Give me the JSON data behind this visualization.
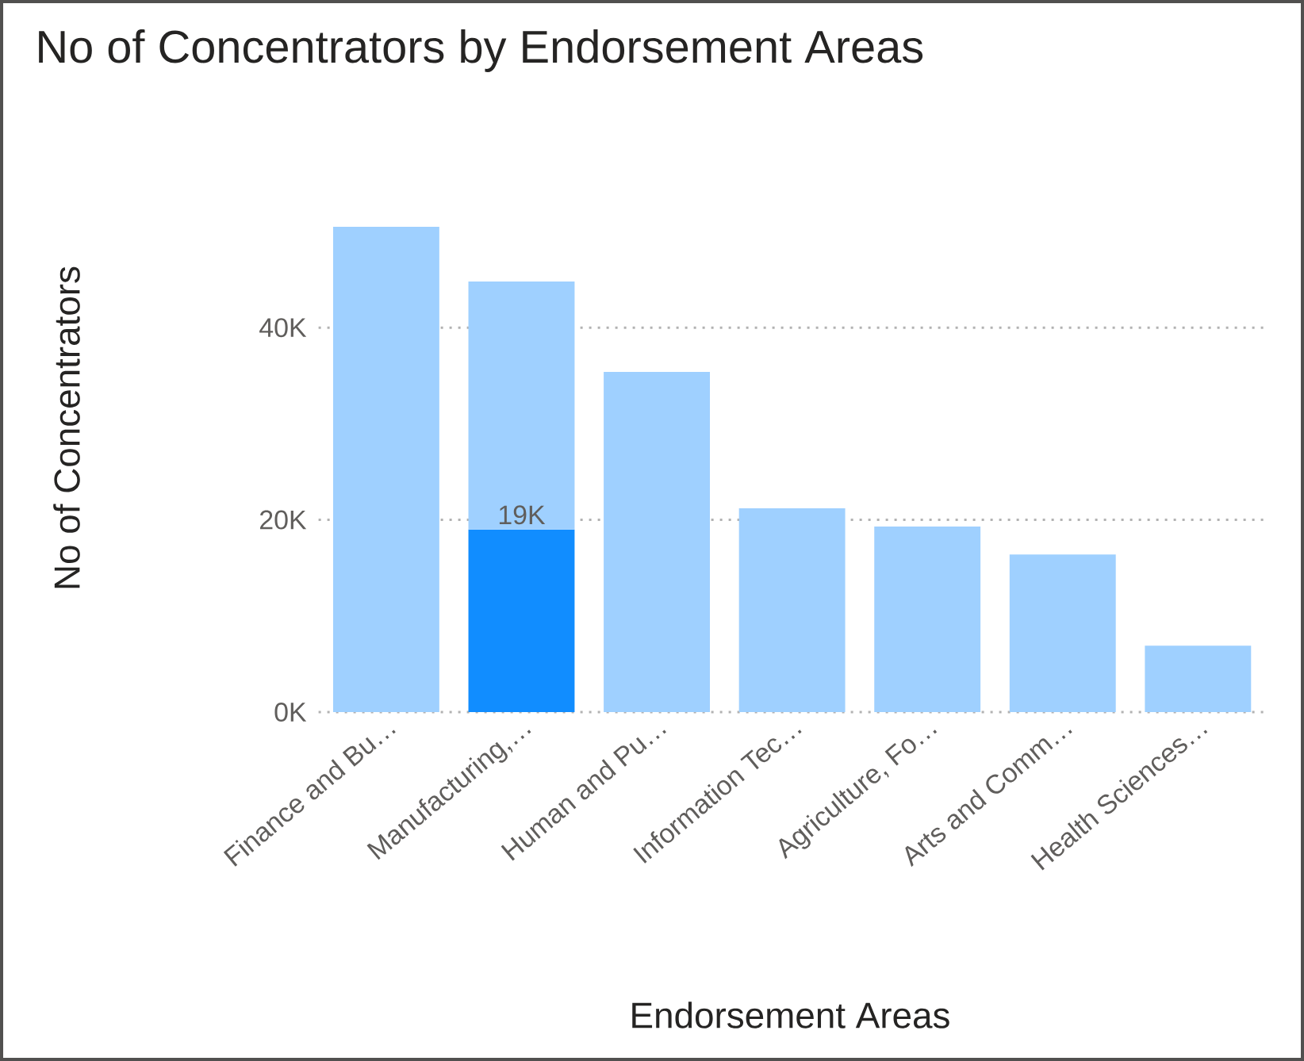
{
  "chart_data": {
    "type": "bar",
    "title": "No of Concentrators by Endorsement Areas",
    "xlabel": "Endorsement Areas",
    "ylabel": "No of Concentrators",
    "categories": [
      "Finance and Bu…",
      "Manufacturing,…",
      "Human and Pu…",
      "Information Tec…",
      "Agriculture, Fo…",
      "Arts and Comm…",
      "Health Sciences…"
    ],
    "stacked": true,
    "series": [
      {
        "color": "#118dff",
        "values": [
          null,
          19000,
          null,
          null,
          null,
          null,
          null
        ],
        "value_labels": [
          null,
          "19K",
          null,
          null,
          null,
          null,
          null
        ]
      },
      {
        "color": "#9fd0ff",
        "values": [
          50500,
          25800,
          35400,
          21200,
          19300,
          16400,
          6900
        ]
      }
    ],
    "yticks": [
      {
        "value": 0,
        "label": "0K"
      },
      {
        "value": 20000,
        "label": "20K"
      },
      {
        "value": 40000,
        "label": "40K"
      }
    ],
    "ylim": [
      0,
      50500
    ],
    "grid": "y"
  }
}
